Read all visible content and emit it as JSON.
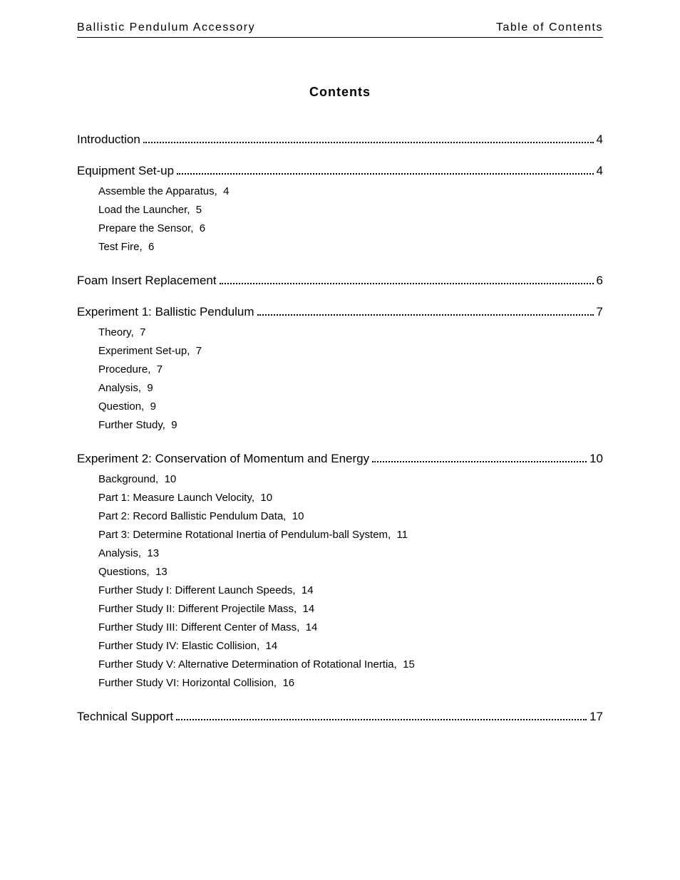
{
  "header": {
    "left": "Ballistic Pendulum Accessory",
    "right": "Table of Contents"
  },
  "title": "Contents",
  "sections": [
    {
      "label": "Introduction",
      "page": "4",
      "subs": []
    },
    {
      "label": "Equipment Set-up",
      "page": "4",
      "subs": [
        {
          "label": "Assemble the Apparatus,",
          "page": "4"
        },
        {
          "label": "Load the Launcher,",
          "page": "5"
        },
        {
          "label": "Prepare the Sensor,",
          "page": "6"
        },
        {
          "label": "Test Fire,",
          "page": "6"
        }
      ]
    },
    {
      "label": "Foam Insert Replacement",
      "page": "6",
      "subs": []
    },
    {
      "label": "Experiment 1: Ballistic Pendulum",
      "page": "7",
      "subs": [
        {
          "label": "Theory,",
          "page": "7"
        },
        {
          "label": "Experiment Set-up,",
          "page": "7"
        },
        {
          "label": "Procedure,",
          "page": "7"
        },
        {
          "label": "Analysis,",
          "page": "9"
        },
        {
          "label": "Question,",
          "page": "9"
        },
        {
          "label": "Further Study,",
          "page": "9"
        }
      ]
    },
    {
      "label": "Experiment 2: Conservation of Momentum and Energy",
      "page": "10",
      "subs": [
        {
          "label": "Background,",
          "page": "10"
        },
        {
          "label": "Part 1: Measure Launch Velocity,",
          "page": "10"
        },
        {
          "label": "Part 2: Record Ballistic Pendulum Data,",
          "page": "10"
        },
        {
          "label": "Part 3: Determine Rotational Inertia of Pendulum-ball System,",
          "page": "11"
        },
        {
          "label": "Analysis,",
          "page": "13"
        },
        {
          "label": "Questions,",
          "page": "13"
        },
        {
          "label": "Further Study I: Different Launch Speeds,",
          "page": "14"
        },
        {
          "label": "Further Study II: Different Projectile Mass,",
          "page": "14"
        },
        {
          "label": "Further Study III: Different Center of Mass,",
          "page": "14"
        },
        {
          "label": "Further Study IV: Elastic Collision,",
          "page": "14"
        },
        {
          "label": "Further Study V: Alternative Determination of Rotational Inertia,",
          "page": "15"
        },
        {
          "label": "Further Study VI: Horizontal Collision,",
          "page": "16"
        }
      ]
    },
    {
      "label": "Technical Support",
      "page": "17",
      "subs": []
    }
  ]
}
